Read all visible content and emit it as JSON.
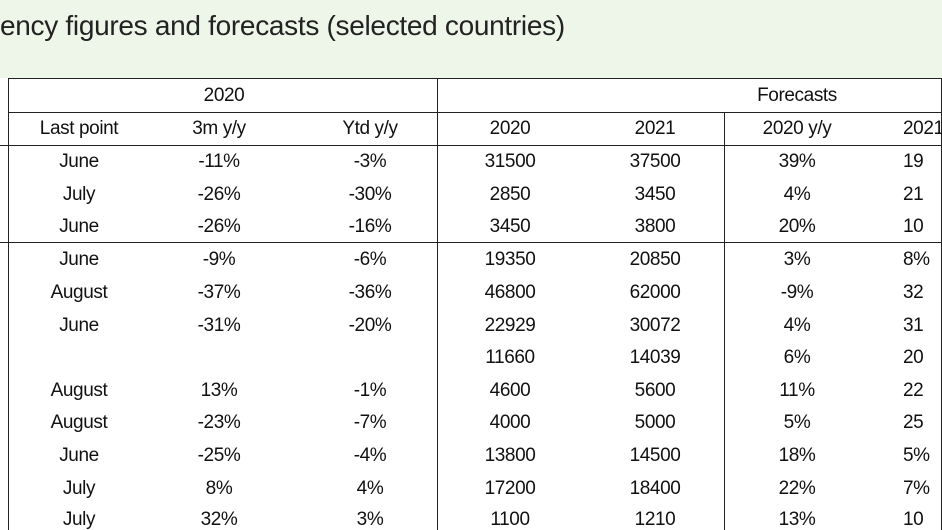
{
  "header": {
    "title": "ency figures and forecasts (selected countries)"
  },
  "table": {
    "group_headers": [
      "2020",
      "Forecasts"
    ],
    "columns": [
      "Last point",
      "3m y/y",
      "Ytd y/y",
      "2020",
      "2021",
      "2020 y/y",
      "2021"
    ],
    "rows": [
      [
        "June",
        "-11%",
        "-3%",
        "31500",
        "37500",
        "39%",
        "19"
      ],
      [
        "July",
        "-26%",
        "-30%",
        "2850",
        "3450",
        "4%",
        "21"
      ],
      [
        "June",
        "-26%",
        "-16%",
        "3450",
        "3800",
        "20%",
        "10"
      ],
      [
        "June",
        "-9%",
        "-6%",
        "19350",
        "20850",
        "3%",
        "8%"
      ],
      [
        "August",
        "-37%",
        "-36%",
        "46800",
        "62000",
        "-9%",
        "32"
      ],
      [
        "June",
        "-31%",
        "-20%",
        "22929",
        "30072",
        "4%",
        "31"
      ],
      [
        null,
        null,
        null,
        "11660",
        "14039",
        "6%",
        "20"
      ],
      [
        "August",
        "13%",
        "-1%",
        "4600",
        "5600",
        "11%",
        "22"
      ],
      [
        "August",
        "-23%",
        "-7%",
        "4000",
        "5000",
        "5%",
        "25"
      ],
      [
        "June",
        "-25%",
        "-4%",
        "13800",
        "14500",
        "18%",
        "5%"
      ],
      [
        "July",
        "8%",
        "4%",
        "17200",
        "18400",
        "22%",
        "7%"
      ],
      [
        "July",
        "32%",
        "3%",
        "1100",
        "1210",
        "13%",
        "10"
      ]
    ]
  }
}
